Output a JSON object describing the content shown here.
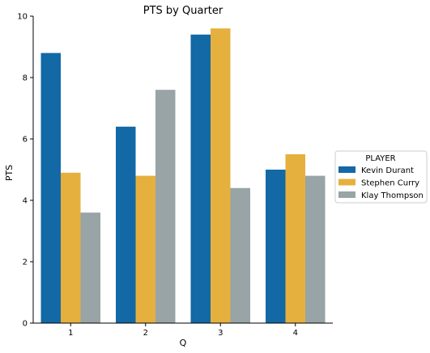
{
  "chart_data": {
    "type": "bar",
    "title": "PTS by Quarter",
    "xlabel": "Q",
    "ylabel": "PTS",
    "categories": [
      "1",
      "2",
      "3",
      "4"
    ],
    "ylim": [
      0,
      10
    ],
    "yticks": [
      "0",
      "2",
      "4",
      "6",
      "8",
      "10"
    ],
    "series": [
      {
        "name": "Kevin Durant",
        "color": "#1368a6",
        "values": [
          8.8,
          6.4,
          9.4,
          5.0
        ]
      },
      {
        "name": "Stephen Curry",
        "color": "#e6b03e",
        "values": [
          4.9,
          4.8,
          9.6,
          5.5
        ]
      },
      {
        "name": "Klay Thompson",
        "color": "#98a4a6",
        "values": [
          3.6,
          7.6,
          4.4,
          4.8
        ]
      }
    ],
    "legend": {
      "title": "PLAYER",
      "placement": "right"
    },
    "grid": false
  }
}
